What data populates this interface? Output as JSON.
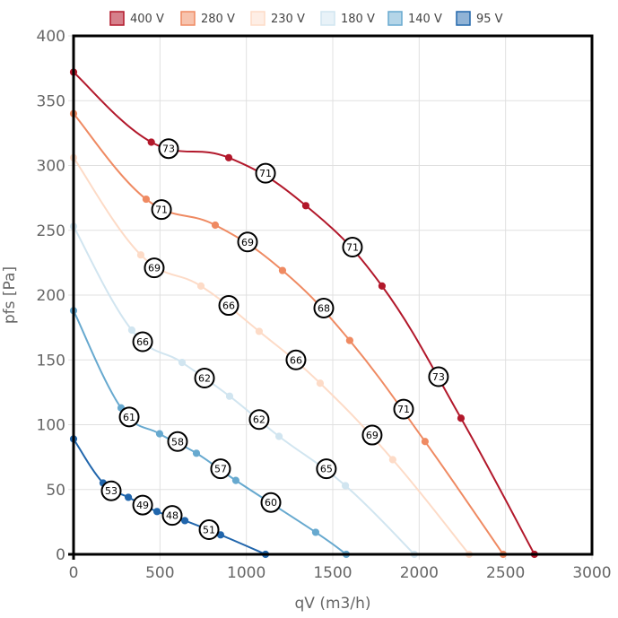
{
  "chart_data": {
    "type": "line",
    "title": "",
    "xlabel": "qV (m3/h)",
    "ylabel": "pfs [Pa]",
    "xlim": [
      0,
      3000
    ],
    "ylim": [
      0,
      400
    ],
    "xticks": [
      0,
      500,
      1000,
      1500,
      2000,
      2500,
      3000
    ],
    "yticks": [
      0,
      50,
      100,
      150,
      200,
      250,
      300,
      350,
      400
    ],
    "grid": true,
    "legend_position": "top-center",
    "series": [
      {
        "name": "400 V",
        "color": "#b2182b",
        "fill": "#d6808b",
        "points": [
          [
            0,
            372
          ],
          [
            450,
            318
          ],
          [
            898,
            306
          ],
          [
            1344,
            269
          ],
          [
            1785,
            207
          ],
          [
            2242,
            105
          ],
          [
            2667,
            0
          ]
        ],
        "labels": [
          [
            550,
            313,
            "73"
          ],
          [
            1111,
            294,
            "71"
          ],
          [
            1614,
            237,
            "71"
          ],
          [
            2112,
            137,
            "73"
          ]
        ]
      },
      {
        "name": "280 V",
        "color": "#ef8a62",
        "fill": "#f7c3ad",
        "points": [
          [
            0,
            340
          ],
          [
            420,
            274
          ],
          [
            820,
            254
          ],
          [
            1209,
            219
          ],
          [
            1598,
            165
          ],
          [
            2034,
            87
          ],
          [
            2486,
            0
          ]
        ],
        "labels": [
          [
            509,
            266,
            "71"
          ],
          [
            1007,
            241,
            "69"
          ],
          [
            1448,
            190,
            "68"
          ],
          [
            1910,
            112,
            "71"
          ]
        ]
      },
      {
        "name": "230 V",
        "color": "#fddbc7",
        "fill": "#feeee5",
        "points": [
          [
            0,
            306
          ],
          [
            389,
            231
          ],
          [
            737,
            207
          ],
          [
            1074,
            172
          ],
          [
            1427,
            132
          ],
          [
            1847,
            73
          ],
          [
            2289,
            0
          ]
        ],
        "labels": [
          [
            467,
            221,
            "69"
          ],
          [
            898,
            192,
            "66"
          ],
          [
            1287,
            150,
            "66"
          ],
          [
            1728,
            92,
            "69"
          ]
        ]
      },
      {
        "name": "180 V",
        "color": "#d1e5f0",
        "fill": "#e8f2f8",
        "points": [
          [
            0,
            253
          ],
          [
            337,
            173
          ],
          [
            628,
            148
          ],
          [
            903,
            122
          ],
          [
            1189,
            91
          ],
          [
            1573,
            53
          ],
          [
            1972,
            0
          ]
        ],
        "labels": [
          [
            400,
            164,
            "66"
          ],
          [
            758,
            136,
            "62"
          ],
          [
            1074,
            104,
            "62"
          ],
          [
            1463,
            66,
            "65"
          ]
        ]
      },
      {
        "name": "140 V",
        "color": "#67a9cf",
        "fill": "#b4d5e8",
        "points": [
          [
            0,
            188
          ],
          [
            275,
            113
          ],
          [
            498,
            93
          ],
          [
            711,
            78
          ],
          [
            939,
            57
          ],
          [
            1401,
            17
          ],
          [
            1578,
            0
          ]
        ],
        "labels": [
          [
            322,
            106,
            "61"
          ],
          [
            602,
            87,
            "58"
          ],
          [
            851,
            66,
            "57"
          ],
          [
            1142,
            40,
            "60"
          ]
        ]
      },
      {
        "name": "95 V",
        "color": "#2166ac",
        "fill": "#90b3d6",
        "points": [
          [
            0,
            89
          ],
          [
            171,
            55
          ],
          [
            317,
            44
          ],
          [
            483,
            33
          ],
          [
            644,
            26
          ],
          [
            851,
            15
          ],
          [
            1111,
            0
          ]
        ],
        "labels": [
          [
            218,
            49,
            "53"
          ],
          [
            400,
            38,
            "49"
          ],
          [
            571,
            30,
            "48"
          ],
          [
            784,
            19,
            "51"
          ]
        ]
      }
    ]
  }
}
